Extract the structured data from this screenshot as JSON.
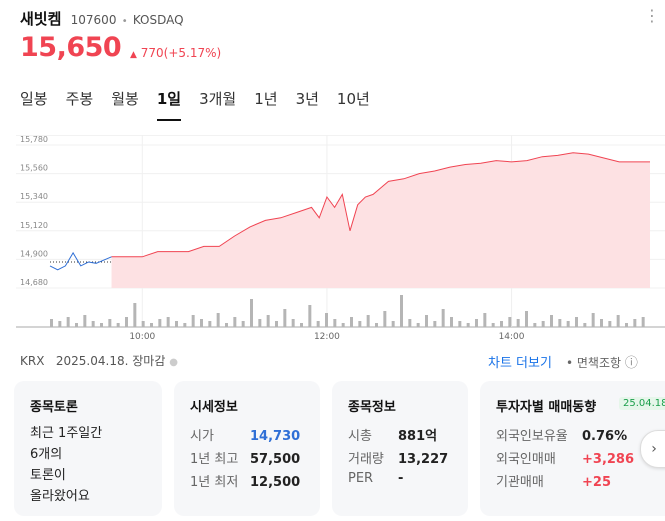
{
  "header": {
    "name": "새빗켐",
    "code": "107600",
    "separator": "•",
    "market": "KOSDAQ",
    "more_icon": "⋮",
    "price": "15,650",
    "change_arrow": "▲",
    "change": "770(+5.17%)"
  },
  "tabs": [
    "일봉",
    "주봉",
    "월봉",
    "1일",
    "3개월",
    "1년",
    "3년",
    "10년"
  ],
  "active_tab": "1일",
  "chart_data": {
    "type": "area",
    "y_ticks": [
      "15,780",
      "15,560",
      "15,340",
      "15,120",
      "14,900",
      "14,680"
    ],
    "ylim": [
      14680,
      15780
    ],
    "x_ticks": [
      "10:00",
      "12:00",
      "14:00"
    ],
    "prev_close": 14880,
    "price_x": [
      "09:00",
      "09:05",
      "09:10",
      "09:15",
      "09:20",
      "09:25",
      "09:30",
      "09:40",
      "09:50",
      "10:00",
      "10:10",
      "10:20",
      "10:30",
      "10:40",
      "10:50",
      "11:00",
      "11:10",
      "11:20",
      "11:30",
      "11:40",
      "11:50",
      "11:55",
      "12:00",
      "12:05",
      "12:10",
      "12:15",
      "12:20",
      "12:25",
      "12:30",
      "12:35",
      "12:40",
      "12:50",
      "13:00",
      "13:10",
      "13:20",
      "13:30",
      "13:40",
      "13:50",
      "14:00",
      "14:10",
      "14:20",
      "14:30",
      "14:40",
      "14:50",
      "15:00",
      "15:10",
      "15:20",
      "15:30"
    ],
    "price_y": [
      14850,
      14820,
      14850,
      14950,
      14850,
      14880,
      14870,
      14920,
      14920,
      14920,
      14960,
      14960,
      14960,
      15000,
      15000,
      15080,
      15150,
      15200,
      15220,
      15260,
      15300,
      15220,
      15380,
      15300,
      15400,
      15120,
      15320,
      15380,
      15400,
      15450,
      15500,
      15520,
      15560,
      15580,
      15610,
      15630,
      15640,
      15660,
      15650,
      15660,
      15690,
      15700,
      15720,
      15710,
      15680,
      15650,
      15650,
      15650
    ],
    "volume": [
      4,
      3,
      5,
      2,
      6,
      3,
      2,
      4,
      2,
      5,
      12,
      3,
      2,
      4,
      5,
      3,
      2,
      6,
      4,
      3,
      7,
      2,
      5,
      3,
      14,
      4,
      6,
      3,
      9,
      4,
      2,
      11,
      3,
      7,
      4,
      2,
      5,
      3,
      6,
      2,
      8,
      3,
      16,
      4,
      2,
      6,
      3,
      9,
      5,
      3,
      2,
      4,
      7,
      2,
      3,
      5,
      4,
      8,
      2,
      3,
      6,
      4,
      3,
      5,
      2,
      7,
      4,
      3,
      6,
      2,
      4,
      5
    ]
  },
  "status": {
    "exchange": "KRX",
    "date": "2025.04.18.",
    "session": "장마감",
    "dot": "●"
  },
  "links": {
    "chart_more": "차트 더보기",
    "disclaimer": "• 면책조항",
    "info_icon": "ⓘ"
  },
  "cards": {
    "board": {
      "title": "종목토론",
      "text": "최근 1주일간\n6개의\n토론이\n올라왔어요"
    },
    "quote": {
      "title": "시세정보",
      "rows": [
        {
          "label": "시가",
          "value": "14,730"
        },
        {
          "label": "1년 최고",
          "value": "57,500"
        },
        {
          "label": "1년 최저",
          "value": "12,500"
        }
      ]
    },
    "info": {
      "title": "종목정보",
      "rows": [
        {
          "label": "시총",
          "value": "881억"
        },
        {
          "label": "거래량",
          "value": "13,227"
        },
        {
          "label": "PER",
          "value": "-"
        }
      ]
    },
    "investor": {
      "title": "투자자별 매매동향",
      "date": "25.04.18",
      "rows": [
        {
          "label": "외국인보유율",
          "value": "0.76%"
        },
        {
          "label": "외국인매매",
          "value": "+3,286"
        },
        {
          "label": "기관매매",
          "value": "+25"
        }
      ]
    },
    "next_icon": "›"
  },
  "colors": {
    "up": "#f04452",
    "down": "#2f6fd6",
    "link": "#1a73e8"
  }
}
